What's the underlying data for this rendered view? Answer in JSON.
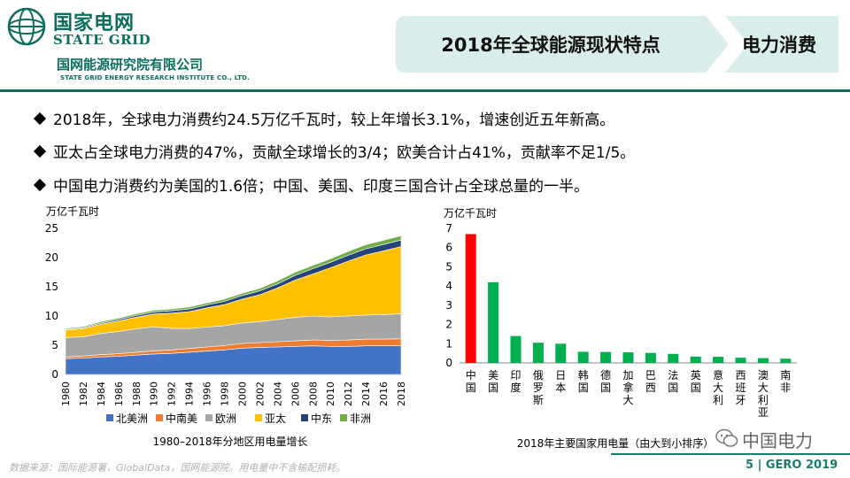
{
  "header": {
    "brand_cn": "国家电网",
    "brand_en": "STATE GRID",
    "institute_cn": "国网能源研究院有限公司",
    "institute_en": "STATE GRID ENERGY RESEARCH INSTITUTE CO., LTD.",
    "title": "2018年全球能源现状特点",
    "section": "电力消费"
  },
  "bullets": [
    "2018年，全球电力消费约24.5万亿千瓦时，较上年增长3.1%，增速创近五年新高。",
    "亚太占全球电力消费的47%，贡献全球增长的3/4；欧美合计占41%，贡献率不足1/5。",
    "中国电力消费约为美国的1.6倍；中国、美国、印度三国合计占全球总量的一半。"
  ],
  "chart_data": [
    {
      "type": "area",
      "stacked": true,
      "title": "1980–2018年分地区用电量增长",
      "ylabel": "万亿千瓦时",
      "ylim": [
        0,
        25
      ],
      "yticks": [
        0,
        5,
        10,
        15,
        20,
        25
      ],
      "x": [
        1980,
        1982,
        1984,
        1986,
        1988,
        1990,
        1992,
        1994,
        1996,
        1998,
        2000,
        2002,
        2004,
        2006,
        2008,
        2010,
        2012,
        2014,
        2016,
        2018
      ],
      "series": [
        {
          "name": "北美洲",
          "color": "#4472c4",
          "values": [
            2.7,
            2.8,
            3.0,
            3.1,
            3.3,
            3.5,
            3.6,
            3.8,
            4.0,
            4.2,
            4.5,
            4.6,
            4.7,
            4.8,
            4.9,
            4.8,
            4.8,
            4.9,
            4.9,
            4.9
          ]
        },
        {
          "name": "中南美",
          "color": "#ed7d31",
          "values": [
            0.3,
            0.35,
            0.4,
            0.45,
            0.5,
            0.55,
            0.6,
            0.65,
            0.7,
            0.75,
            0.8,
            0.85,
            0.9,
            0.95,
            1.0,
            1.05,
            1.1,
            1.15,
            1.15,
            1.2
          ]
        },
        {
          "name": "欧洲",
          "color": "#a5a5a5",
          "values": [
            3.3,
            3.3,
            3.6,
            3.8,
            4.0,
            4.1,
            3.7,
            3.4,
            3.4,
            3.4,
            3.5,
            3.6,
            3.8,
            4.0,
            4.1,
            4.0,
            4.1,
            4.1,
            4.2,
            4.3
          ]
        },
        {
          "name": "亚太",
          "color": "#ffc000",
          "values": [
            1.3,
            1.4,
            1.6,
            1.8,
            2.0,
            2.2,
            2.6,
            2.9,
            3.3,
            3.6,
            4.1,
            4.6,
            5.4,
            6.4,
            7.2,
            8.4,
            9.4,
            10.3,
            10.9,
            11.5
          ]
        },
        {
          "name": "中东",
          "color": "#264478",
          "values": [
            0.1,
            0.15,
            0.2,
            0.25,
            0.3,
            0.35,
            0.4,
            0.45,
            0.5,
            0.55,
            0.6,
            0.65,
            0.7,
            0.8,
            0.9,
            0.95,
            1.0,
            1.05,
            1.1,
            1.1
          ]
        },
        {
          "name": "非洲",
          "color": "#70ad47",
          "values": [
            0.2,
            0.2,
            0.25,
            0.25,
            0.3,
            0.3,
            0.3,
            0.35,
            0.35,
            0.4,
            0.4,
            0.45,
            0.5,
            0.55,
            0.55,
            0.6,
            0.65,
            0.7,
            0.7,
            0.75
          ]
        }
      ]
    },
    {
      "type": "bar",
      "title": "2018年主要国家用电量（由大到小排序）",
      "ylabel": "万亿千瓦时",
      "ylim": [
        0,
        7
      ],
      "yticks": [
        0,
        1,
        2,
        3,
        4,
        5,
        6,
        7
      ],
      "categories": [
        "中国",
        "美国",
        "印度",
        "俄罗斯",
        "日本",
        "韩国",
        "德国",
        "加拿大",
        "巴西",
        "法国",
        "英国",
        "意大利",
        "西班牙",
        "澳大利亚",
        "南非"
      ],
      "values": [
        6.7,
        4.2,
        1.4,
        1.05,
        1.0,
        0.58,
        0.57,
        0.55,
        0.52,
        0.47,
        0.33,
        0.32,
        0.27,
        0.25,
        0.22
      ],
      "colors": [
        "#ff0000",
        "#00b050",
        "#00b050",
        "#00b050",
        "#00b050",
        "#00b050",
        "#00b050",
        "#00b050",
        "#00b050",
        "#00b050",
        "#00b050",
        "#00b050",
        "#00b050",
        "#00b050",
        "#00b050"
      ]
    }
  ],
  "footer": {
    "source": "数据来源：国际能源署，GlobalData，国网能源院。用电量中不含输配损耗。",
    "watermark": "中国电力",
    "page": "5 | GERO 2019"
  }
}
